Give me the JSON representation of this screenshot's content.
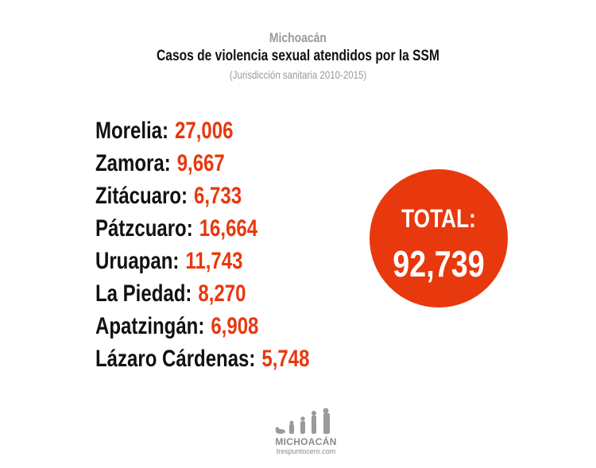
{
  "header": {
    "supertitle": "Michoacán",
    "title": "Casos de violencia sexual atendidos por la SSM",
    "subtitle": "(Jurisdicción sanitaria 2010-2015)"
  },
  "items": [
    {
      "name": "Morelia:",
      "value": "27,006"
    },
    {
      "name": "Zamora:",
      "value": "9,667"
    },
    {
      "name": "Zitácuaro:",
      "value": "6,733"
    },
    {
      "name": "Pátzcuaro:",
      "value": "16,664"
    },
    {
      "name": "Uruapan:",
      "value": "11,743"
    },
    {
      "name": "La Piedad:",
      "value": "8,270"
    },
    {
      "name": "Apatzingán:",
      "value": "6,908"
    },
    {
      "name": "Lázaro Cárdenas:",
      "value": "5,748"
    }
  ],
  "total": {
    "label": "TOTAL:",
    "value": "92,739"
  },
  "logo": {
    "title": "MICHOACÁN",
    "site": "trespuntocero.com"
  },
  "colors": {
    "accent": "#e8380d",
    "text": "#111111",
    "muted": "#9a9a9a"
  }
}
